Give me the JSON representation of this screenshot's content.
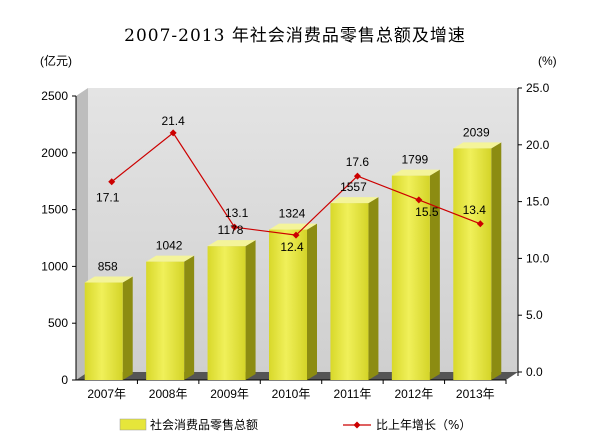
{
  "chart_data": {
    "type": "bar",
    "title": "2007-2013 年社会消费品零售总额及增速",
    "categories": [
      "2007年",
      "2008年",
      "2009年",
      "2010年",
      "2011年",
      "2012年",
      "2013年"
    ],
    "left_unit": "(亿元)",
    "right_unit": "(%)",
    "ylim": [
      0,
      2500
    ],
    "y_ticks": [
      "0",
      "500",
      "1000",
      "1500",
      "2000",
      "2500"
    ],
    "y2lim": [
      0,
      25
    ],
    "y2_ticks": [
      "0.0",
      "5.0",
      "10.0",
      "15.0",
      "20.0",
      "25.0"
    ],
    "grid": false,
    "legend_position": "bottom",
    "colors": {
      "bar_front": "#e6e63a",
      "bar_side": "#8c8c12",
      "bar_top": "#f4f49a",
      "line": "#cc0000",
      "wall": "#d2d2d2",
      "floor": "#555555"
    },
    "series": [
      {
        "name": "社会消费品零售总额",
        "type": "bar",
        "axis": "left",
        "values": [
          858,
          1042,
          1178,
          1324,
          1557,
          1799,
          2039
        ],
        "labels": [
          "858",
          "1042",
          "1178",
          "1324",
          "1557",
          "1799",
          "2039"
        ]
      },
      {
        "name": "比上年增长（%）",
        "type": "line",
        "axis": "right",
        "values": [
          17.1,
          21.4,
          13.1,
          12.4,
          17.6,
          15.5,
          13.4
        ],
        "labels": [
          "17.1",
          "21.4",
          "13.1",
          "12.4",
          "17.6",
          "15.5",
          "13.4"
        ]
      }
    ]
  }
}
